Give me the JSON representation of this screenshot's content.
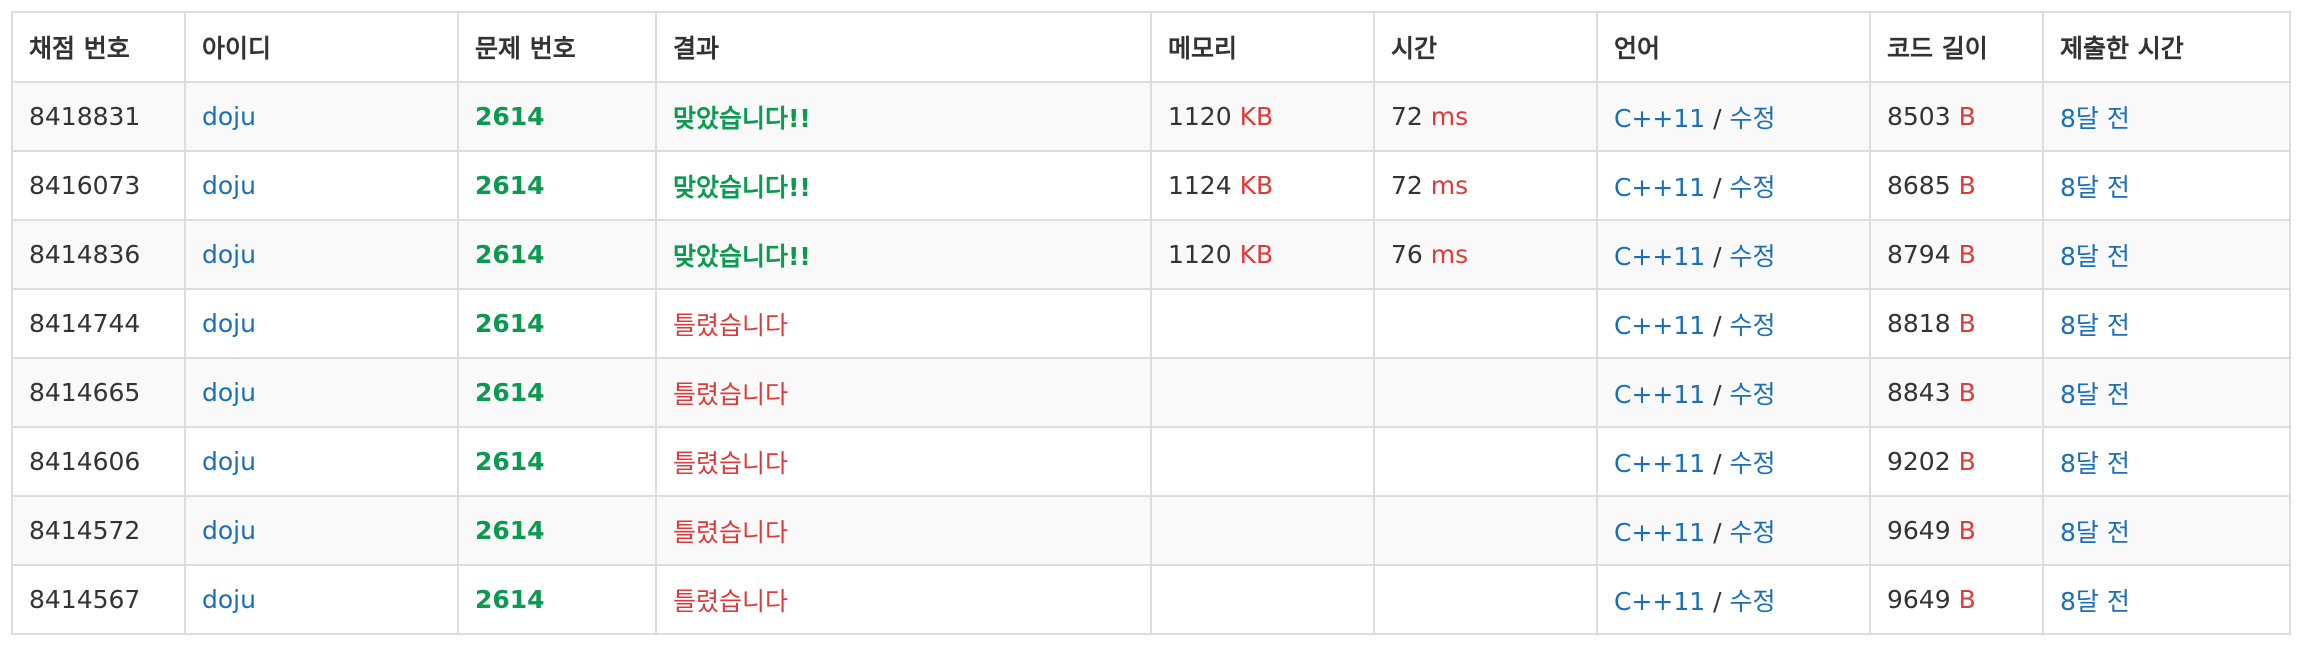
{
  "headers": [
    "채점 번호",
    "아이디",
    "문제 번호",
    "결과",
    "메모리",
    "시간",
    "언어",
    "코드 길이",
    "제출한 시간"
  ],
  "colors": {
    "link": "#1a6fb5",
    "accepted": "#0b9a4f",
    "wrong": "#dd3b3b",
    "unit": "#dd3b3b",
    "border": "#dddddd",
    "stripe": "#f9f9f9"
  },
  "rows": [
    {
      "id": "8418831",
      "user": "doju",
      "problem": "2614",
      "result": "맞았습니다!!",
      "result_type": "ac",
      "memory": "1120",
      "memory_unit": "KB",
      "time": "72",
      "time_unit": "ms",
      "language": "C++11",
      "lang_sep": "/",
      "edit": "수정",
      "code_length": "8503",
      "code_unit": "B",
      "submitted": "8달 전"
    },
    {
      "id": "8416073",
      "user": "doju",
      "problem": "2614",
      "result": "맞았습니다!!",
      "result_type": "ac",
      "memory": "1124",
      "memory_unit": "KB",
      "time": "72",
      "time_unit": "ms",
      "language": "C++11",
      "lang_sep": "/",
      "edit": "수정",
      "code_length": "8685",
      "code_unit": "B",
      "submitted": "8달 전"
    },
    {
      "id": "8414836",
      "user": "doju",
      "problem": "2614",
      "result": "맞았습니다!!",
      "result_type": "ac",
      "memory": "1120",
      "memory_unit": "KB",
      "time": "76",
      "time_unit": "ms",
      "language": "C++11",
      "lang_sep": "/",
      "edit": "수정",
      "code_length": "8794",
      "code_unit": "B",
      "submitted": "8달 전"
    },
    {
      "id": "8414744",
      "user": "doju",
      "problem": "2614",
      "result": "틀렸습니다",
      "result_type": "wa",
      "memory": "",
      "memory_unit": "",
      "time": "",
      "time_unit": "",
      "language": "C++11",
      "lang_sep": "/",
      "edit": "수정",
      "code_length": "8818",
      "code_unit": "B",
      "submitted": "8달 전"
    },
    {
      "id": "8414665",
      "user": "doju",
      "problem": "2614",
      "result": "틀렸습니다",
      "result_type": "wa",
      "memory": "",
      "memory_unit": "",
      "time": "",
      "time_unit": "",
      "language": "C++11",
      "lang_sep": "/",
      "edit": "수정",
      "code_length": "8843",
      "code_unit": "B",
      "submitted": "8달 전"
    },
    {
      "id": "8414606",
      "user": "doju",
      "problem": "2614",
      "result": "틀렸습니다",
      "result_type": "wa",
      "memory": "",
      "memory_unit": "",
      "time": "",
      "time_unit": "",
      "language": "C++11",
      "lang_sep": "/",
      "edit": "수정",
      "code_length": "9202",
      "code_unit": "B",
      "submitted": "8달 전"
    },
    {
      "id": "8414572",
      "user": "doju",
      "problem": "2614",
      "result": "틀렸습니다",
      "result_type": "wa",
      "memory": "",
      "memory_unit": "",
      "time": "",
      "time_unit": "",
      "language": "C++11",
      "lang_sep": "/",
      "edit": "수정",
      "code_length": "9649",
      "code_unit": "B",
      "submitted": "8달 전"
    },
    {
      "id": "8414567",
      "user": "doju",
      "problem": "2614",
      "result": "틀렸습니다",
      "result_type": "wa",
      "memory": "",
      "memory_unit": "",
      "time": "",
      "time_unit": "",
      "language": "C++11",
      "lang_sep": "/",
      "edit": "수정",
      "code_length": "9649",
      "code_unit": "B",
      "submitted": "8달 전"
    }
  ]
}
